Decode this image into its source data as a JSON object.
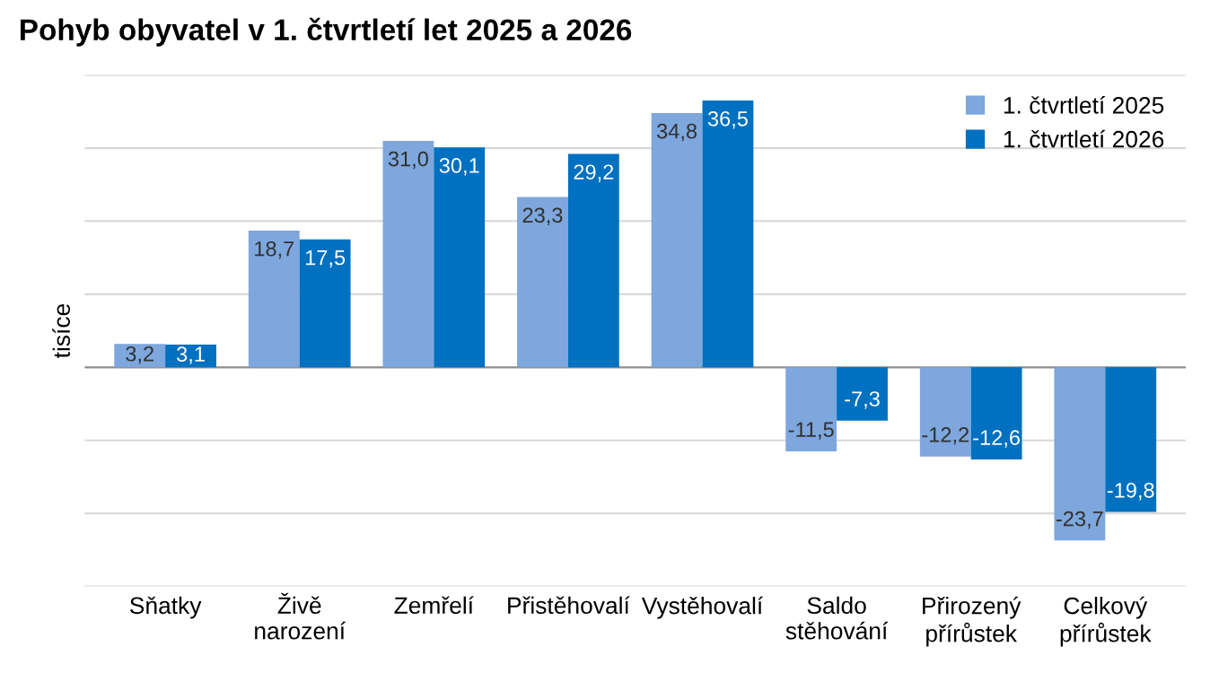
{
  "chart_data": {
    "type": "bar",
    "title": "Pohyb obyvatel v 1. čtvrtletí let 2025 a 2026",
    "ylabel": "tisíce",
    "categories": [
      "Sňatky",
      "Živě\nnarození",
      "Zemřelí",
      "Přistěhovalí",
      "Vystěhovalí",
      "Saldo\nstěhování",
      "Přirozený\npřírůstek",
      "Celkový\npřírůstek"
    ],
    "series": [
      {
        "name": "1. čtvrtletí 2025",
        "color": "#7da7dd",
        "values": [
          3.2,
          18.7,
          31.0,
          23.3,
          34.8,
          -11.5,
          -12.2,
          -23.7
        ],
        "value_labels": [
          "3,2",
          "18,7",
          "31,0",
          "23,3",
          "34,8",
          "-11,5",
          "-12,2",
          "-23,7"
        ]
      },
      {
        "name": "1. čtvrtletí 2026",
        "color": "#0070c0",
        "values": [
          3.1,
          17.5,
          30.1,
          29.2,
          36.5,
          -7.3,
          -12.6,
          -19.8
        ],
        "value_labels": [
          "3,1",
          "17,5",
          "30,1",
          "29,2",
          "36,5",
          "-7,3",
          "-12,6",
          "-19,8"
        ]
      }
    ],
    "ylim": [
      -30,
      40
    ],
    "yticks": [
      {
        "value": -30,
        "label": null
      },
      {
        "value": -20,
        "label": null
      },
      {
        "value": -10,
        "label": null
      },
      {
        "value": 0,
        "label": null
      },
      {
        "value": 10,
        "label": null
      },
      {
        "value": 20,
        "label": null
      },
      {
        "value": 30,
        "label": null
      },
      {
        "value": 40,
        "label": null
      }
    ],
    "tick_labels": "x",
    "grid": "y",
    "legend": "top right"
  }
}
